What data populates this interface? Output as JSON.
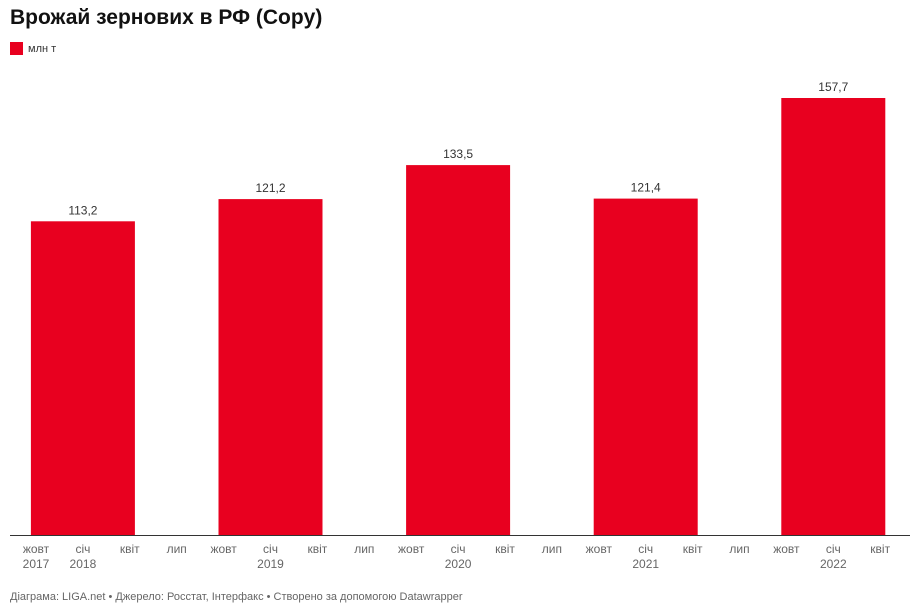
{
  "title": "Врожай зернових в РФ (Copy)",
  "footer": "Діаграма: LIGA.net • Джерело: Росстат, Інтерфакс • Створено за допомогою Datawrapper",
  "colors": {
    "bar": "#e8001f",
    "axis": "#333333",
    "tick_text": "#666666",
    "value_text": "#333333"
  },
  "chart_data": {
    "type": "bar",
    "title": "Врожай зернових в РФ (Copy)",
    "series": [
      {
        "name": "млн т",
        "values": [
          113.2,
          121.2,
          133.5,
          121.4,
          157.7
        ]
      }
    ],
    "value_labels": [
      "113,2",
      "121,2",
      "133,5",
      "121,4",
      "157,7"
    ],
    "ylim": [
      0,
      157.7
    ],
    "grid": false,
    "legend": "top-left",
    "x_ticks": [
      {
        "month": "жовт",
        "year": "2017"
      },
      {
        "month": "січ",
        "year": "2018"
      },
      {
        "month": "квіт",
        "year": ""
      },
      {
        "month": "лип",
        "year": ""
      },
      {
        "month": "жовт",
        "year": ""
      },
      {
        "month": "січ",
        "year": "2019"
      },
      {
        "month": "квіт",
        "year": ""
      },
      {
        "month": "лип",
        "year": ""
      },
      {
        "month": "жовт",
        "year": ""
      },
      {
        "month": "січ",
        "year": "2020"
      },
      {
        "month": "квіт",
        "year": ""
      },
      {
        "month": "лип",
        "year": ""
      },
      {
        "month": "жовт",
        "year": ""
      },
      {
        "month": "січ",
        "year": "2021"
      },
      {
        "month": "квіт",
        "year": ""
      },
      {
        "month": "лип",
        "year": ""
      },
      {
        "month": "жовт",
        "year": ""
      },
      {
        "month": "січ",
        "year": "2022"
      },
      {
        "month": "квіт",
        "year": ""
      }
    ]
  }
}
